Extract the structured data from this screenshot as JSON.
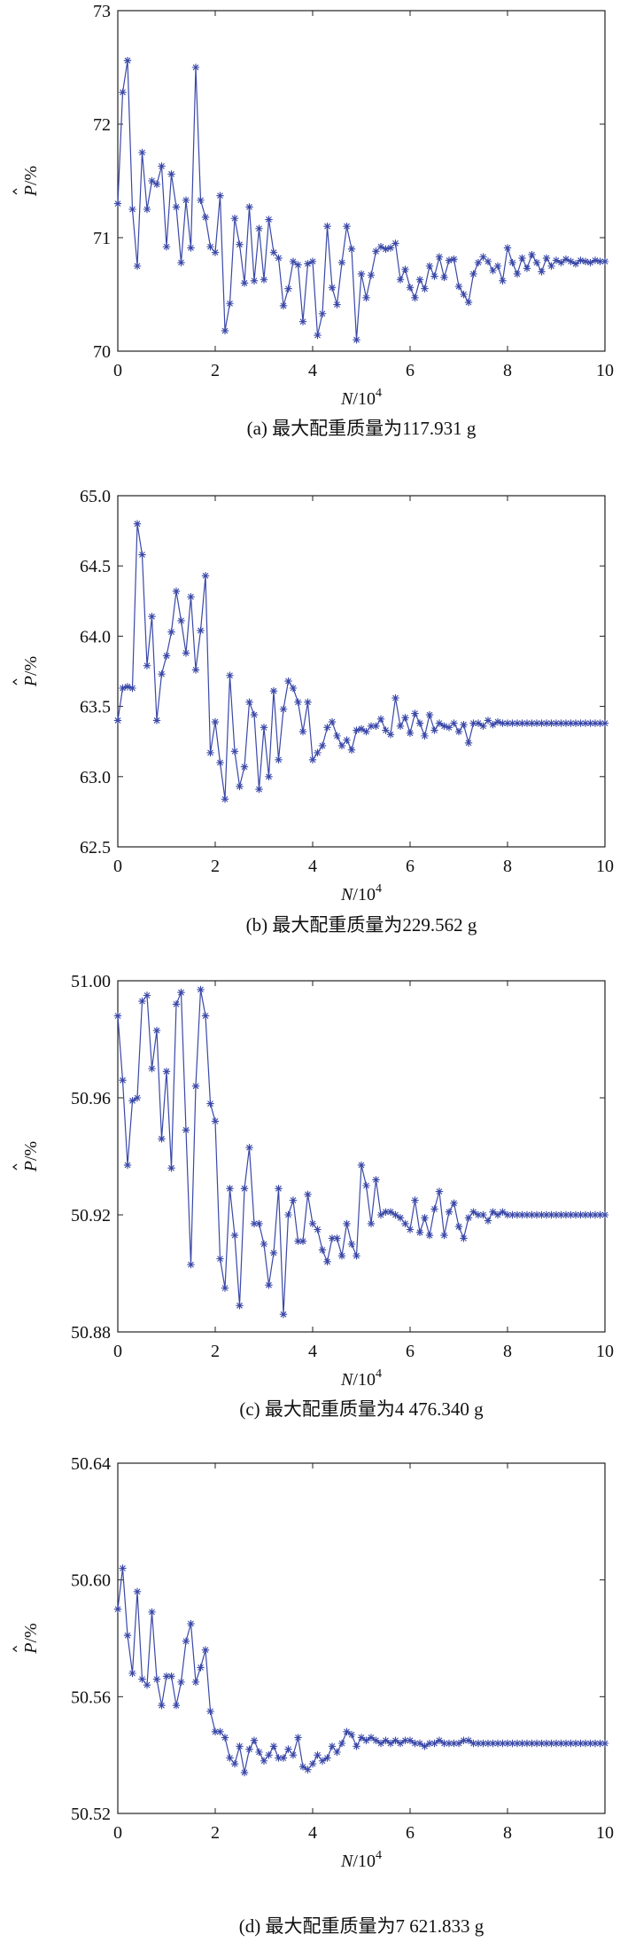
{
  "chart_data": [
    {
      "type": "line",
      "id": "a",
      "caption": "(a) 最大配重质量为117.931 g",
      "xlabel_var": "N",
      "xlabel_unit": "/10",
      "xlabel_exp": "4",
      "ylabel_var": "P",
      "ylabel_unit": "/%",
      "xlim": [
        0,
        10
      ],
      "ylim": [
        70,
        73
      ],
      "xticks": [
        0,
        2,
        4,
        6,
        8,
        10
      ],
      "yticks": [
        70,
        71,
        72,
        73
      ],
      "ytick_labels": [
        "70",
        "71",
        "72",
        "73"
      ],
      "x": [
        0,
        0.1,
        0.2,
        0.3,
        0.4,
        0.5,
        0.6,
        0.7,
        0.8,
        0.9,
        1.0,
        1.1,
        1.2,
        1.3,
        1.4,
        1.5,
        1.6,
        1.7,
        1.8,
        1.9,
        2.0,
        2.1,
        2.2,
        2.3,
        2.4,
        2.5,
        2.6,
        2.7,
        2.8,
        2.9,
        3.0,
        3.1,
        3.2,
        3.3,
        3.4,
        3.5,
        3.6,
        3.7,
        3.8,
        3.9,
        4.0,
        4.1,
        4.2,
        4.3,
        4.4,
        4.5,
        4.6,
        4.7,
        4.8,
        4.9,
        5.0,
        5.1,
        5.2,
        5.3,
        5.4,
        5.5,
        5.6,
        5.7,
        5.8,
        5.9,
        6.0,
        6.1,
        6.2,
        6.3,
        6.4,
        6.5,
        6.6,
        6.7,
        6.8,
        6.9,
        7.0,
        7.1,
        7.2,
        7.3,
        7.4,
        7.5,
        7.6,
        7.7,
        7.8,
        7.9,
        8.0,
        8.1,
        8.2,
        8.3,
        8.4,
        8.5,
        8.6,
        8.7,
        8.8,
        8.9,
        9.0,
        9.1,
        9.2,
        9.3,
        9.4,
        9.5,
        9.6,
        9.7,
        9.8,
        9.9,
        10.0
      ],
      "values": [
        71.3,
        72.28,
        72.56,
        71.25,
        70.75,
        71.75,
        71.25,
        71.5,
        71.47,
        71.63,
        70.92,
        71.56,
        71.27,
        70.78,
        71.33,
        70.91,
        72.5,
        71.33,
        71.18,
        70.92,
        70.87,
        71.37,
        70.18,
        70.42,
        71.17,
        70.94,
        70.6,
        71.27,
        70.62,
        71.08,
        70.63,
        71.16,
        70.87,
        70.82,
        70.4,
        70.55,
        70.79,
        70.76,
        70.26,
        70.77,
        70.79,
        70.14,
        70.33,
        71.1,
        70.56,
        70.41,
        70.78,
        71.1,
        70.9,
        70.1,
        70.68,
        70.47,
        70.67,
        70.88,
        70.92,
        70.9,
        70.91,
        70.95,
        70.63,
        70.72,
        70.56,
        70.47,
        70.63,
        70.55,
        70.75,
        70.66,
        70.83,
        70.65,
        70.8,
        70.81,
        70.57,
        70.5,
        70.43,
        70.68,
        70.78,
        70.83,
        70.79,
        70.71,
        70.75,
        70.62,
        70.91,
        70.78,
        70.68,
        70.82,
        70.73,
        70.85,
        70.78,
        70.7,
        70.82,
        70.75,
        70.8,
        70.78,
        70.81,
        70.79,
        70.77,
        70.8,
        70.79,
        70.78,
        70.8,
        70.79,
        70.79
      ]
    },
    {
      "type": "line",
      "id": "b",
      "caption": "(b) 最大配重质量为229.562 g",
      "xlabel_var": "N",
      "xlabel_unit": "/10",
      "xlabel_exp": "4",
      "ylabel_var": "P",
      "ylabel_unit": "/%",
      "xlim": [
        0,
        10
      ],
      "ylim": [
        62.5,
        65.0
      ],
      "xticks": [
        0,
        2,
        4,
        6,
        8,
        10
      ],
      "yticks": [
        62.5,
        63.0,
        63.5,
        64.0,
        64.5,
        65.0
      ],
      "ytick_labels": [
        "62.5",
        "63.0",
        "63.5",
        "64.0",
        "64.5",
        "65.0"
      ],
      "x": [
        0,
        0.1,
        0.2,
        0.3,
        0.4,
        0.5,
        0.6,
        0.7,
        0.8,
        0.9,
        1.0,
        1.1,
        1.2,
        1.3,
        1.4,
        1.5,
        1.6,
        1.7,
        1.8,
        1.9,
        2.0,
        2.1,
        2.2,
        2.3,
        2.4,
        2.5,
        2.6,
        2.7,
        2.8,
        2.9,
        3.0,
        3.1,
        3.2,
        3.3,
        3.4,
        3.5,
        3.6,
        3.7,
        3.8,
        3.9,
        4.0,
        4.1,
        4.2,
        4.3,
        4.4,
        4.5,
        4.6,
        4.7,
        4.8,
        4.9,
        5.0,
        5.1,
        5.2,
        5.3,
        5.4,
        5.5,
        5.6,
        5.7,
        5.8,
        5.9,
        6.0,
        6.1,
        6.2,
        6.3,
        6.4,
        6.5,
        6.6,
        6.7,
        6.8,
        6.9,
        7.0,
        7.1,
        7.2,
        7.3,
        7.4,
        7.5,
        7.6,
        7.7,
        7.8,
        7.9,
        8.0,
        8.1,
        8.2,
        8.3,
        8.4,
        8.5,
        8.6,
        8.7,
        8.8,
        8.9,
        9.0,
        9.1,
        9.2,
        9.3,
        9.4,
        9.5,
        9.6,
        9.7,
        9.8,
        9.9,
        10.0
      ],
      "values": [
        63.4,
        63.63,
        63.64,
        63.63,
        64.8,
        64.58,
        63.79,
        64.14,
        63.4,
        63.73,
        63.86,
        64.03,
        64.32,
        64.11,
        63.88,
        64.28,
        63.76,
        64.04,
        64.43,
        63.17,
        63.39,
        63.1,
        62.84,
        63.72,
        63.18,
        62.93,
        63.07,
        63.53,
        63.44,
        62.91,
        63.35,
        63.0,
        63.61,
        63.12,
        63.48,
        63.68,
        63.63,
        63.53,
        63.32,
        63.53,
        63.12,
        63.17,
        63.22,
        63.35,
        63.39,
        63.29,
        63.22,
        63.26,
        63.19,
        63.33,
        63.34,
        63.32,
        63.36,
        63.36,
        63.41,
        63.33,
        63.3,
        63.56,
        63.36,
        63.42,
        63.31,
        63.45,
        63.38,
        63.29,
        63.44,
        63.33,
        63.38,
        63.36,
        63.35,
        63.38,
        63.32,
        63.37,
        63.24,
        63.38,
        63.38,
        63.36,
        63.4,
        63.37,
        63.39,
        63.38,
        63.38,
        63.38,
        63.38,
        63.38,
        63.38,
        63.38,
        63.38,
        63.38,
        63.38,
        63.38,
        63.38,
        63.38,
        63.38,
        63.38,
        63.38,
        63.38,
        63.38,
        63.38,
        63.38,
        63.38,
        63.38
      ]
    },
    {
      "type": "line",
      "id": "c",
      "caption": "(c) 最大配重质量为4 476.340 g",
      "xlabel_var": "N",
      "xlabel_unit": "/10",
      "xlabel_exp": "4",
      "ylabel_var": "P",
      "ylabel_unit": "/%",
      "xlim": [
        0,
        10
      ],
      "ylim": [
        50.88,
        51.0
      ],
      "xticks": [
        0,
        2,
        4,
        6,
        8,
        10
      ],
      "yticks": [
        50.88,
        50.92,
        50.96,
        51.0
      ],
      "ytick_labels": [
        "50.88",
        "50.92",
        "50.96",
        "51.00"
      ],
      "x": [
        0,
        0.1,
        0.2,
        0.3,
        0.4,
        0.5,
        0.6,
        0.7,
        0.8,
        0.9,
        1.0,
        1.1,
        1.2,
        1.3,
        1.4,
        1.5,
        1.6,
        1.7,
        1.8,
        1.9,
        2.0,
        2.1,
        2.2,
        2.3,
        2.4,
        2.5,
        2.6,
        2.7,
        2.8,
        2.9,
        3.0,
        3.1,
        3.2,
        3.3,
        3.4,
        3.5,
        3.6,
        3.7,
        3.8,
        3.9,
        4.0,
        4.1,
        4.2,
        4.3,
        4.4,
        4.5,
        4.6,
        4.7,
        4.8,
        4.9,
        5.0,
        5.1,
        5.2,
        5.3,
        5.4,
        5.5,
        5.6,
        5.7,
        5.8,
        5.9,
        6.0,
        6.1,
        6.2,
        6.3,
        6.4,
        6.5,
        6.6,
        6.7,
        6.8,
        6.9,
        7.0,
        7.1,
        7.2,
        7.3,
        7.4,
        7.5,
        7.6,
        7.7,
        7.8,
        7.9,
        8.0,
        8.1,
        8.2,
        8.3,
        8.4,
        8.5,
        8.6,
        8.7,
        8.8,
        8.9,
        9.0,
        9.1,
        9.2,
        9.3,
        9.4,
        9.5,
        9.6,
        9.7,
        9.8,
        9.9,
        10.0
      ],
      "values": [
        50.988,
        50.966,
        50.937,
        50.959,
        50.96,
        50.993,
        50.995,
        50.97,
        50.983,
        50.946,
        50.969,
        50.936,
        50.992,
        50.996,
        50.949,
        50.903,
        50.964,
        50.997,
        50.988,
        50.958,
        50.952,
        50.905,
        50.895,
        50.929,
        50.913,
        50.889,
        50.929,
        50.943,
        50.917,
        50.917,
        50.91,
        50.896,
        50.907,
        50.929,
        50.886,
        50.92,
        50.925,
        50.911,
        50.911,
        50.927,
        50.917,
        50.915,
        50.908,
        50.904,
        50.912,
        50.912,
        50.906,
        50.917,
        50.91,
        50.906,
        50.937,
        50.93,
        50.917,
        50.932,
        50.92,
        50.921,
        50.921,
        50.92,
        50.919,
        50.917,
        50.915,
        50.925,
        50.914,
        50.919,
        50.913,
        50.922,
        50.928,
        50.913,
        50.921,
        50.924,
        50.916,
        50.912,
        50.919,
        50.921,
        50.92,
        50.92,
        50.918,
        50.921,
        50.92,
        50.921,
        50.92,
        50.92,
        50.92,
        50.92,
        50.92,
        50.92,
        50.92,
        50.92,
        50.92,
        50.92,
        50.92,
        50.92,
        50.92,
        50.92,
        50.92,
        50.92,
        50.92,
        50.92,
        50.92,
        50.92,
        50.92
      ]
    },
    {
      "type": "line",
      "id": "d",
      "caption": "(d) 最大配重质量为7 621.833 g",
      "xlabel_var": "N",
      "xlabel_unit": "/10",
      "xlabel_exp": "4",
      "ylabel_var": "P",
      "ylabel_unit": "/%",
      "xlim": [
        0,
        10
      ],
      "ylim": [
        50.52,
        50.64
      ],
      "xticks": [
        0,
        2,
        4,
        6,
        8,
        10
      ],
      "yticks": [
        50.52,
        50.56,
        50.6,
        50.64
      ],
      "ytick_labels": [
        "50.52",
        "50.56",
        "50.60",
        "50.64"
      ],
      "x": [
        0,
        0.1,
        0.2,
        0.3,
        0.4,
        0.5,
        0.6,
        0.7,
        0.8,
        0.9,
        1.0,
        1.1,
        1.2,
        1.3,
        1.4,
        1.5,
        1.6,
        1.7,
        1.8,
        1.9,
        2.0,
        2.1,
        2.2,
        2.3,
        2.4,
        2.5,
        2.6,
        2.7,
        2.8,
        2.9,
        3.0,
        3.1,
        3.2,
        3.3,
        3.4,
        3.5,
        3.6,
        3.7,
        3.8,
        3.9,
        4.0,
        4.1,
        4.2,
        4.3,
        4.4,
        4.5,
        4.6,
        4.7,
        4.8,
        4.9,
        5.0,
        5.1,
        5.2,
        5.3,
        5.4,
        5.5,
        5.6,
        5.7,
        5.8,
        5.9,
        6.0,
        6.1,
        6.2,
        6.3,
        6.4,
        6.5,
        6.6,
        6.7,
        6.8,
        6.9,
        7.0,
        7.1,
        7.2,
        7.3,
        7.4,
        7.5,
        7.6,
        7.7,
        7.8,
        7.9,
        8.0,
        8.1,
        8.2,
        8.3,
        8.4,
        8.5,
        8.6,
        8.7,
        8.8,
        8.9,
        9.0,
        9.1,
        9.2,
        9.3,
        9.4,
        9.5,
        9.6,
        9.7,
        9.8,
        9.9,
        10.0
      ],
      "values": [
        50.59,
        50.604,
        50.581,
        50.568,
        50.596,
        50.566,
        50.564,
        50.589,
        50.566,
        50.557,
        50.567,
        50.567,
        50.557,
        50.565,
        50.579,
        50.585,
        50.565,
        50.57,
        50.576,
        50.555,
        50.548,
        50.548,
        50.546,
        50.539,
        50.537,
        50.543,
        50.534,
        50.542,
        50.545,
        50.541,
        50.538,
        50.54,
        50.543,
        50.539,
        50.539,
        50.542,
        50.54,
        50.546,
        50.536,
        50.535,
        50.537,
        50.54,
        50.538,
        50.539,
        50.543,
        50.541,
        50.544,
        50.548,
        50.547,
        50.543,
        50.546,
        50.545,
        50.546,
        50.545,
        50.544,
        50.545,
        50.544,
        50.545,
        50.544,
        50.545,
        50.545,
        50.544,
        50.544,
        50.543,
        50.544,
        50.544,
        50.545,
        50.544,
        50.544,
        50.544,
        50.544,
        50.545,
        50.545,
        50.544,
        50.544,
        50.544,
        50.544,
        50.544,
        50.544,
        50.544,
        50.544,
        50.544,
        50.544,
        50.544,
        50.544,
        50.544,
        50.544,
        50.544,
        50.544,
        50.544,
        50.544,
        50.544,
        50.544,
        50.544,
        50.544,
        50.544,
        50.544,
        50.544,
        50.544,
        50.544,
        50.544
      ]
    }
  ],
  "colors": {
    "series": "#3a48a8",
    "axis": "#222222"
  }
}
